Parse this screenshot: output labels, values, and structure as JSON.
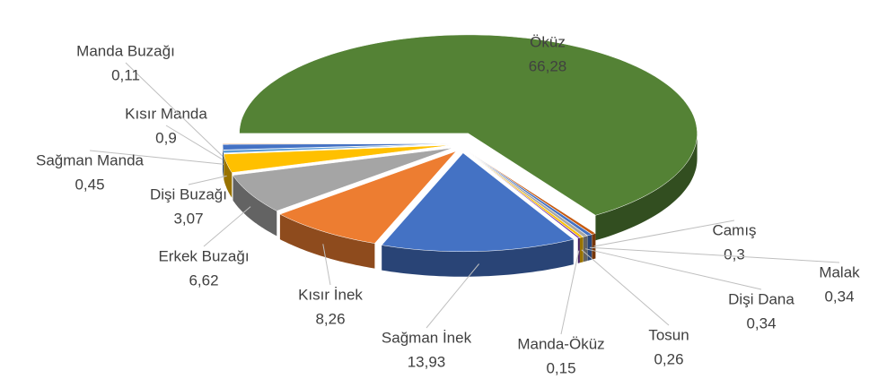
{
  "chart_data": {
    "type": "pie",
    "categories": [
      "Öküz",
      "Camış",
      "Malak",
      "Dişi Dana",
      "Tosun",
      "Manda-Öküz",
      "Sağman İnek",
      "Kısır İnek",
      "Erkek Buzağı",
      "Dişi Buzağı",
      "Sağman Manda",
      "Kısır Manda",
      "Manda Buzağı"
    ],
    "values": [
      66.28,
      0.3,
      0.34,
      0.34,
      0.26,
      0.15,
      13.93,
      8.26,
      6.62,
      3.07,
      0.45,
      0.9,
      0.11
    ],
    "value_labels": [
      "66,28",
      "0,3",
      "0,34",
      "0,34",
      "0,26",
      "0,15",
      "13,93",
      "8,26",
      "6,62",
      "3,07",
      "0,45",
      "0,9",
      "0,11"
    ],
    "colors": [
      "#548235",
      "#c55a11",
      "#4472c4",
      "#a5a5a5",
      "#ffc000",
      "#7030a0",
      "#4472c4",
      "#ed7d31",
      "#a5a5a5",
      "#ffc000",
      "#5b9bd5",
      "#4472c4",
      "#ed7d31"
    ]
  }
}
